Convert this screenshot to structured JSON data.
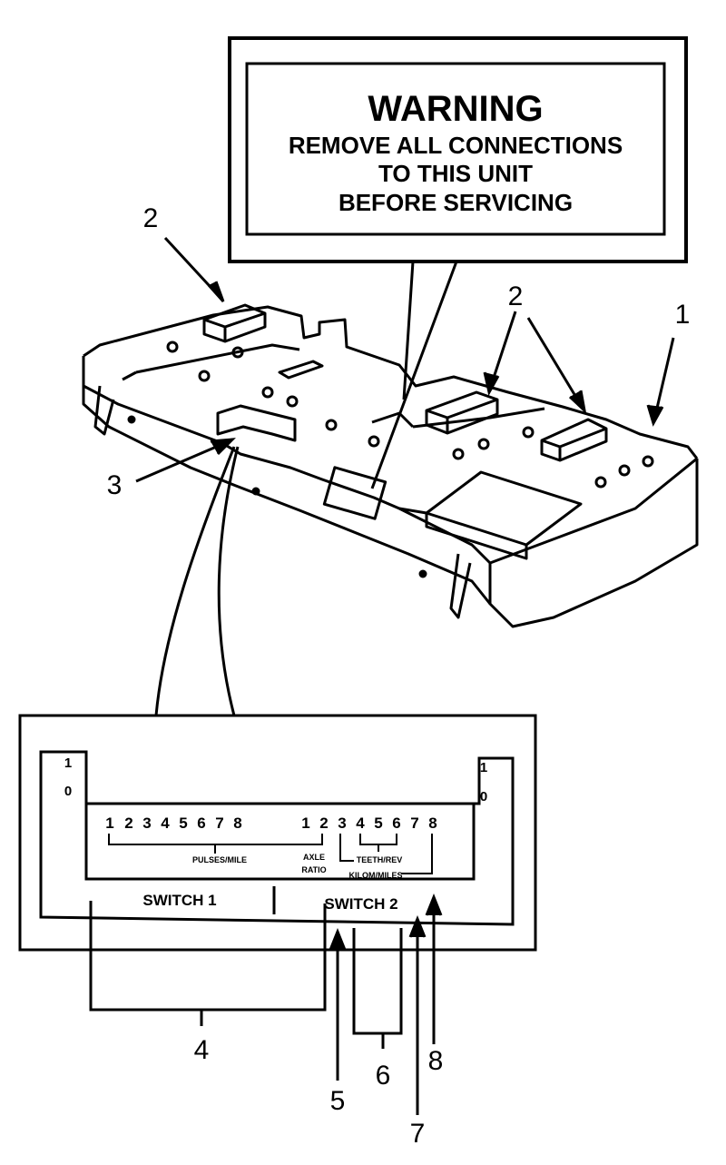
{
  "warning": {
    "title": "WARNING",
    "line1": "REMOVE ALL CONNECTIONS",
    "line2": "TO THIS UNIT",
    "line3": "BEFORE SERVICING"
  },
  "callouts": {
    "c1": "1",
    "c2a": "2",
    "c2b": "2",
    "c3": "3",
    "c4": "4",
    "c5": "5",
    "c6": "6",
    "c7": "7",
    "c8": "8"
  },
  "switch_panel": {
    "switch1_label": "SWITCH 1",
    "switch2_label": "SWITCH 2",
    "on_left": "1",
    "off_left": "0",
    "on_right": "1",
    "off_right": "0",
    "switch1_positions": [
      "1",
      "2",
      "3",
      "4",
      "5",
      "6",
      "7",
      "8"
    ],
    "switch2_positions": [
      "1",
      "2",
      "3",
      "4",
      "5",
      "6",
      "7",
      "8"
    ],
    "group_pulses": "PULSES/MILE",
    "group_axle_1": "AXLE",
    "group_axle_2": "RATIO",
    "group_teeth": "TEETH/REV",
    "group_km": "KILOM/MILES"
  }
}
